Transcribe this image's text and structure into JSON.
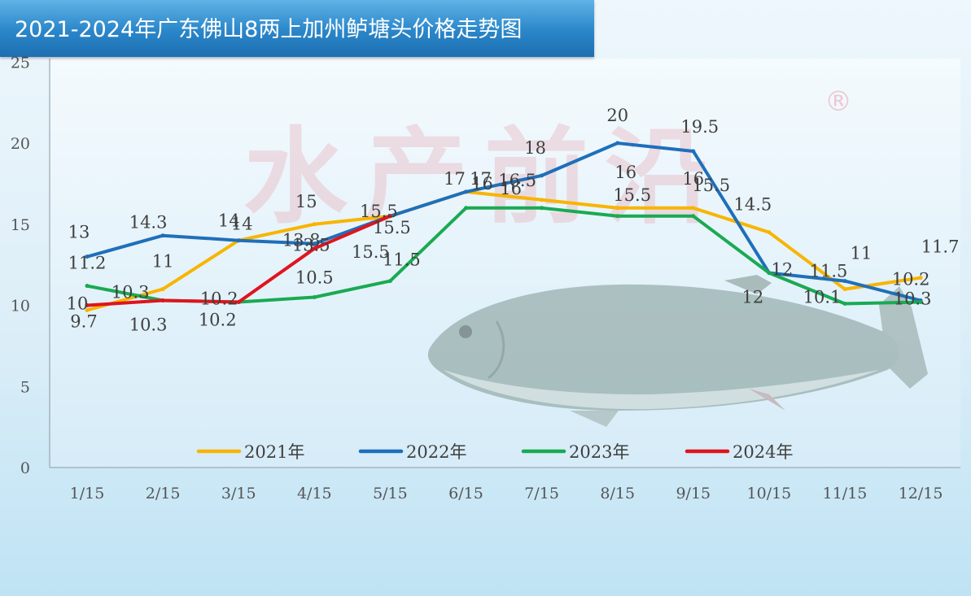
{
  "title": "2021-2024年广东佛山8两上加州鲈塘头价格走势图",
  "colors": {
    "2021": "#f7b500",
    "2022": "#1f6fba",
    "2023": "#1aaa52",
    "2024": "#e0141c",
    "title_bar": "#2a86c9",
    "watermark": "#e7a3ae"
  },
  "watermark": {
    "text": "水产前沿",
    "mark": "®"
  },
  "chart_data": {
    "type": "line",
    "title": "2021-2024年广东佛山8两上加州鲈塘头价格走势图",
    "categories": [
      "1/15",
      "2/15",
      "3/15",
      "4/15",
      "5/15",
      "6/15",
      "7/15",
      "8/15",
      "9/15",
      "10/15",
      "11/15",
      "12/15"
    ],
    "y_ticks": [
      "0",
      "5",
      "10",
      "15",
      "20",
      "25"
    ],
    "ylim": [
      0,
      25
    ],
    "grid": false,
    "legend_position": "bottom",
    "series": [
      {
        "name": "2021年",
        "color": "#f7b500",
        "values": [
          9.7,
          11,
          14,
          15,
          15.5,
          17,
          16.5,
          16,
          16,
          14.5,
          11,
          11.7
        ]
      },
      {
        "name": "2022年",
        "color": "#1f6fba",
        "values": [
          13,
          14.3,
          14,
          13.8,
          15.5,
          17,
          18,
          20,
          19.5,
          12,
          11.5,
          10.3
        ]
      },
      {
        "name": "2023年",
        "color": "#1aaa52",
        "values": [
          11.2,
          10.3,
          10.2,
          10.5,
          11.5,
          16,
          16,
          15.5,
          15.5,
          12,
          10.1,
          10.2
        ]
      },
      {
        "name": "2024年",
        "color": "#e0141c",
        "values": [
          10,
          10.3,
          10.2,
          13.5,
          15.5,
          null,
          null,
          null,
          null,
          null,
          null,
          null
        ]
      }
    ],
    "data_labels": [
      {
        "text": "10",
        "series": "2024年",
        "index": 0
      },
      {
        "text": "9.7",
        "series": "2021年",
        "index": 0
      },
      {
        "text": "13",
        "series": "2022年",
        "index": 0
      },
      {
        "text": "11.2",
        "series": "2023年",
        "index": 0
      },
      {
        "text": "14.3",
        "series": "2022年",
        "index": 1
      },
      {
        "text": "11",
        "series": "2021年",
        "index": 1
      },
      {
        "text": "10.3",
        "series": "2024年",
        "index": 1
      },
      {
        "text": "10.3",
        "series": "2023年",
        "index": 1
      },
      {
        "text": "14",
        "series": "2021年",
        "index": 2
      },
      {
        "text": "14",
        "series": "2022年",
        "index": 2
      },
      {
        "text": "10.2",
        "series": "2024年",
        "index": 2
      },
      {
        "text": "10.2",
        "series": "2023年",
        "index": 2
      },
      {
        "text": "15",
        "series": "2021年",
        "index": 3
      },
      {
        "text": "13.5",
        "series": "2024年",
        "index": 3
      },
      {
        "text": "13.8",
        "series": "2022年",
        "index": 3
      },
      {
        "text": "10.5",
        "series": "2023年",
        "index": 3
      },
      {
        "text": "15.5",
        "series": "2021年",
        "index": 4
      },
      {
        "text": "15.5",
        "series": "2024年",
        "index": 4
      },
      {
        "text": "15.5",
        "series": "2022年",
        "index": 4
      },
      {
        "text": "11.5",
        "series": "2023年",
        "index": 4
      },
      {
        "text": "17",
        "series": "2021年",
        "index": 5
      },
      {
        "text": "17",
        "series": "2022年",
        "index": 5
      },
      {
        "text": "16",
        "series": "2023年",
        "index": 5
      },
      {
        "text": "18",
        "series": "2022年",
        "index": 6
      },
      {
        "text": "16.5",
        "series": "2021年",
        "index": 6
      },
      {
        "text": "16",
        "series": "2023年",
        "index": 6
      },
      {
        "text": "20",
        "series": "2022年",
        "index": 7
      },
      {
        "text": "16",
        "series": "2021年",
        "index": 7
      },
      {
        "text": "15.5",
        "series": "2023年",
        "index": 7
      },
      {
        "text": "19.5",
        "series": "2022年",
        "index": 8
      },
      {
        "text": "16",
        "series": "2021年",
        "index": 8
      },
      {
        "text": "15.5",
        "series": "2023年",
        "index": 8
      },
      {
        "text": "14.5",
        "series": "2021年",
        "index": 9
      },
      {
        "text": "12",
        "series": "2022年",
        "index": 9
      },
      {
        "text": "12",
        "series": "2023年",
        "index": 9
      },
      {
        "text": "11",
        "series": "2021年",
        "index": 10
      },
      {
        "text": "11.5",
        "series": "2022年",
        "index": 10
      },
      {
        "text": "10.1",
        "series": "2023年",
        "index": 10
      },
      {
        "text": "11.7",
        "series": "2021年",
        "index": 11
      },
      {
        "text": "10.2",
        "series": "2023年",
        "index": 11
      },
      {
        "text": "10.3",
        "series": "2022年",
        "index": 11
      }
    ]
  }
}
